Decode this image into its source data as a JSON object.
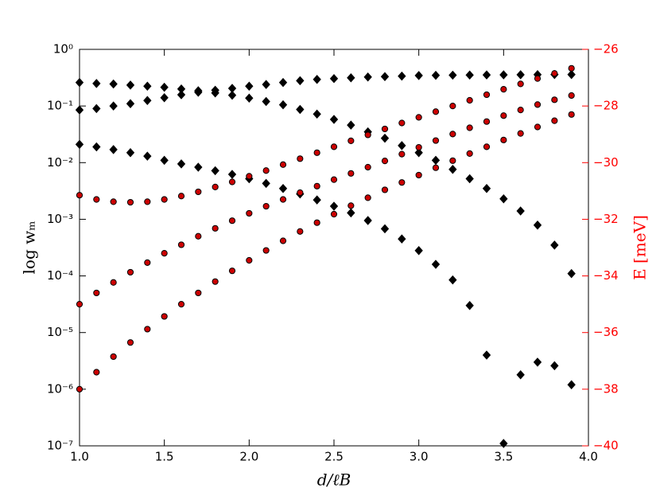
{
  "chart_data": {
    "type": "scatter",
    "xlabel": "d/ℓB",
    "ylabel": "log wₘ",
    "y2label": "E [meV]",
    "x": [
      1.0,
      1.1,
      1.2,
      1.3,
      1.4,
      1.5,
      1.6,
      1.7,
      1.8,
      1.9,
      2.0,
      2.1,
      2.2,
      2.3,
      2.4,
      2.5,
      2.6,
      2.7,
      2.8,
      2.9,
      3.0,
      3.1,
      3.2,
      3.3,
      3.4,
      3.5,
      3.6,
      3.7,
      3.8,
      3.9
    ],
    "xlim": [
      1.0,
      4.0
    ],
    "xticks": [
      {
        "value": 1.0,
        "label": "1.0"
      },
      {
        "value": 1.5,
        "label": "1.5"
      },
      {
        "value": 2.0,
        "label": "2.0"
      },
      {
        "value": 2.5,
        "label": "2.5"
      },
      {
        "value": 3.0,
        "label": "3.0"
      },
      {
        "value": 3.5,
        "label": "3.5"
      },
      {
        "value": 4.0,
        "label": "4.0"
      }
    ],
    "ylog": true,
    "ylim": [
      1e-07,
      1
    ],
    "yticks": [
      {
        "value": 1e-07,
        "label": "10⁻⁷"
      },
      {
        "value": 1e-06,
        "label": "10⁻⁶"
      },
      {
        "value": 1e-05,
        "label": "10⁻⁵"
      },
      {
        "value": 0.0001,
        "label": "10⁻⁴"
      },
      {
        "value": 0.001,
        "label": "10⁻³"
      },
      {
        "value": 0.01,
        "label": "10⁻²"
      },
      {
        "value": 0.1,
        "label": "10⁻¹"
      },
      {
        "value": 1,
        "label": "10⁰"
      }
    ],
    "y2lim": [
      -40,
      -26
    ],
    "y2ticks": [
      {
        "value": -40,
        "label": "−40"
      },
      {
        "value": -38,
        "label": "−38"
      },
      {
        "value": -36,
        "label": "−36"
      },
      {
        "value": -34,
        "label": "−34"
      },
      {
        "value": -32,
        "label": "−32"
      },
      {
        "value": -30,
        "label": "−30"
      },
      {
        "value": -28,
        "label": "−28"
      },
      {
        "value": -26,
        "label": "−26"
      }
    ],
    "y2color": "#ff0000",
    "series": [
      {
        "color": "#000000",
        "marker": "diamond",
        "values": [
          0.26,
          0.25,
          0.245,
          0.234,
          0.224,
          0.214,
          0.2,
          0.186,
          0.17,
          0.155,
          0.138,
          0.12,
          0.105,
          0.087,
          0.072,
          0.058,
          0.046,
          0.035,
          0.027,
          0.02,
          0.015,
          0.011,
          0.0076,
          0.0052,
          0.0035,
          0.0023,
          0.0014,
          0.00079,
          0.00035,
          0.00011
        ]
      },
      {
        "color": "#000000",
        "marker": "diamond",
        "values": [
          0.085,
          0.09,
          0.1,
          0.11,
          0.125,
          0.14,
          0.158,
          0.175,
          0.19,
          0.205,
          0.224,
          0.24,
          0.26,
          0.28,
          0.295,
          0.305,
          0.315,
          0.325,
          0.33,
          0.337,
          0.345,
          0.348,
          0.35,
          0.352,
          0.354,
          0.355,
          0.357,
          0.358,
          0.36,
          0.36
        ]
      },
      {
        "color": "#000000",
        "marker": "diamond",
        "values": [
          0.021,
          0.019,
          0.017,
          0.015,
          0.013,
          0.011,
          0.0095,
          0.0083,
          0.0072,
          0.0062,
          0.0052,
          0.0043,
          0.0035,
          0.0028,
          0.0022,
          0.0017,
          0.0013,
          0.00095,
          0.00068,
          0.00045,
          0.00028,
          0.00016,
          8.5e-05,
          3e-05,
          4e-06,
          1.1e-07,
          1.8e-06,
          3e-06,
          2.6e-06,
          1.2e-06
        ]
      },
      {
        "color": "#cc0000",
        "marker": "circle",
        "axis": "y2",
        "values": [
          -31.15,
          -31.3,
          -31.38,
          -31.4,
          -31.38,
          -31.3,
          -31.18,
          -31.03,
          -30.86,
          -30.68,
          -30.48,
          -30.28,
          -30.07,
          -29.86,
          -29.65,
          -29.44,
          -29.23,
          -29.02,
          -28.81,
          -28.6,
          -28.4,
          -28.2,
          -28.0,
          -27.8,
          -27.6,
          -27.41,
          -27.22,
          -27.03,
          -26.85,
          -26.67
        ]
      },
      {
        "color": "#cc0000",
        "marker": "circle",
        "axis": "y2",
        "values": [
          -35.0,
          -34.6,
          -34.23,
          -33.87,
          -33.53,
          -33.2,
          -32.9,
          -32.6,
          -32.32,
          -32.05,
          -31.79,
          -31.54,
          -31.3,
          -31.06,
          -30.83,
          -30.6,
          -30.38,
          -30.16,
          -29.94,
          -29.7,
          -29.46,
          -29.22,
          -28.99,
          -28.77,
          -28.55,
          -28.34,
          -28.14,
          -27.95,
          -27.78,
          -27.63
        ]
      },
      {
        "color": "#cc0000",
        "marker": "circle",
        "axis": "y2",
        "values": [
          -38.0,
          -37.4,
          -36.85,
          -36.35,
          -35.88,
          -35.43,
          -35.0,
          -34.6,
          -34.2,
          -33.82,
          -33.45,
          -33.1,
          -32.76,
          -32.43,
          -32.12,
          -31.82,
          -31.52,
          -31.24,
          -30.96,
          -30.7,
          -30.44,
          -30.18,
          -29.93,
          -29.68,
          -29.44,
          -29.2,
          -28.97,
          -28.74,
          -28.52,
          -28.3
        ]
      }
    ]
  }
}
